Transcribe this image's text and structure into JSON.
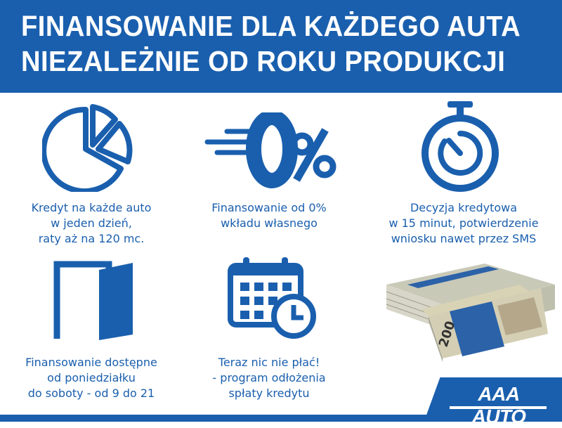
{
  "header": {
    "line1": "FINANSOWANIE DLA KAŻDEGO AUTA",
    "line2": "NIEZALEŻNIE OD ROKU PRODUKCJI"
  },
  "features": [
    {
      "icon": "pie-chart-icon",
      "lines": [
        "Kredyt na każde auto",
        "w jeden dzień,",
        "raty aż na 120 mc."
      ]
    },
    {
      "icon": "zero-percent-icon",
      "lines": [
        "Finansowanie od 0%",
        "wkładu własnego"
      ]
    },
    {
      "icon": "stopwatch-icon",
      "lines": [
        "Decyzja kredytowa",
        "w 15 minut, potwierdzenie",
        "wniosku nawet przez SMS"
      ]
    },
    {
      "icon": "open-door-icon",
      "lines": [
        "Finansowanie dostępne",
        "od poniedziałku",
        "do soboty - od 9 do 21"
      ]
    },
    {
      "icon": "calendar-clock-icon",
      "lines": [
        "Teraz nic nie płać!",
        "- program odłożenia",
        "spłaty kredytu"
      ]
    }
  ],
  "banknote": {
    "denomination": "200"
  },
  "logo": {
    "text": "AAA AUTO"
  },
  "colors": {
    "brand_blue": "#1a5fae",
    "background": "#ffffff"
  }
}
